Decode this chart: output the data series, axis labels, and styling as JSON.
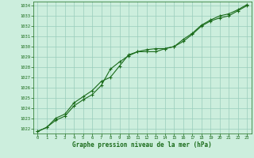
{
  "hours": [
    0,
    1,
    2,
    3,
    4,
    5,
    6,
    7,
    8,
    9,
    10,
    11,
    12,
    13,
    14,
    15,
    16,
    17,
    18,
    19,
    20,
    21,
    22,
    23
  ],
  "pressure1": [
    1021.7,
    1022.1,
    1022.8,
    1023.2,
    1024.2,
    1024.8,
    1025.3,
    1026.2,
    1027.8,
    1028.5,
    1029.1,
    1029.5,
    1029.5,
    1029.5,
    1029.8,
    1030.0,
    1030.5,
    1031.2,
    1032.0,
    1032.5,
    1032.8,
    1033.0,
    1033.5,
    1034.0
  ],
  "pressure2": [
    1021.7,
    1022.1,
    1023.0,
    1023.4,
    1024.5,
    1025.1,
    1025.7,
    1026.6,
    1027.0,
    1028.1,
    1029.2,
    1029.5,
    1029.7,
    1029.8,
    1029.8,
    1030.0,
    1030.7,
    1031.3,
    1032.1,
    1032.6,
    1033.0,
    1033.2,
    1033.6,
    1034.1
  ],
  "yticks": [
    1022,
    1023,
    1024,
    1025,
    1026,
    1027,
    1028,
    1029,
    1030,
    1031,
    1032,
    1033,
    1034
  ],
  "xticks": [
    0,
    1,
    2,
    3,
    4,
    5,
    6,
    7,
    8,
    9,
    10,
    11,
    12,
    13,
    14,
    15,
    16,
    17,
    18,
    19,
    20,
    21,
    22,
    23
  ],
  "line_color": "#1a6b1a",
  "bg_color": "#cceedd",
  "grid_color": "#99ccbb",
  "xlabel": "Graphe pression niveau de la mer (hPa)",
  "xlabel_color": "#1a6b1a",
  "tick_color": "#1a6b1a",
  "marker": "+",
  "marker_size": 3,
  "linewidth": 0.8
}
